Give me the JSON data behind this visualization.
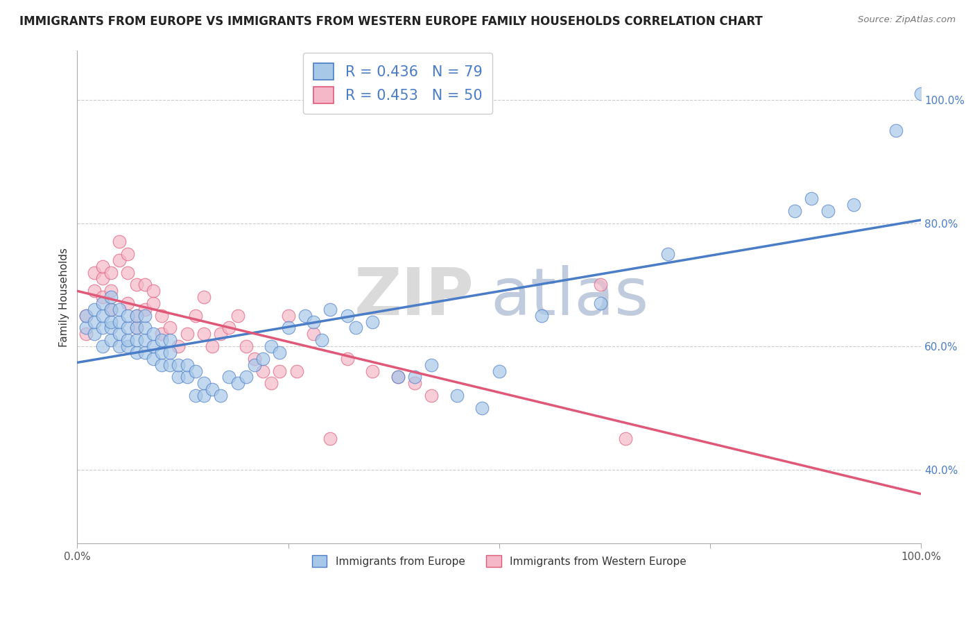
{
  "title": "IMMIGRANTS FROM EUROPE VS IMMIGRANTS FROM WESTERN EUROPE FAMILY HOUSEHOLDS CORRELATION CHART",
  "source": "Source: ZipAtlas.com",
  "ylabel": "Family Households",
  "series1_label": "Immigrants from Europe",
  "series2_label": "Immigrants from Western Europe",
  "series1_R": 0.436,
  "series1_N": 79,
  "series2_R": 0.453,
  "series2_N": 50,
  "series1_color": "#A8C8E8",
  "series2_color": "#F4B8C8",
  "line1_color": "#4A7CC7",
  "line2_color": "#E05878",
  "background_color": "#FFFFFF",
  "tick_color": "#4A7CC7",
  "xlim": [
    0.0,
    1.0
  ],
  "ylim": [
    0.28,
    1.08
  ],
  "yticks": [
    0.4,
    0.6,
    0.8,
    1.0
  ],
  "ytick_labels": [
    "40.0%",
    "60.0%",
    "80.0%",
    "100.0%"
  ],
  "title_fontsize": 12,
  "axis_label_fontsize": 11,
  "tick_fontsize": 11,
  "legend_fontsize": 15,
  "watermark_zip_color": "#D8D8D8",
  "watermark_atlas_color": "#C8D4E8",
  "series1_x": [
    0.01,
    0.01,
    0.02,
    0.02,
    0.02,
    0.03,
    0.03,
    0.03,
    0.03,
    0.04,
    0.04,
    0.04,
    0.04,
    0.04,
    0.05,
    0.05,
    0.05,
    0.05,
    0.06,
    0.06,
    0.06,
    0.06,
    0.07,
    0.07,
    0.07,
    0.07,
    0.08,
    0.08,
    0.08,
    0.08,
    0.09,
    0.09,
    0.09,
    0.1,
    0.1,
    0.1,
    0.11,
    0.11,
    0.11,
    0.12,
    0.12,
    0.13,
    0.13,
    0.14,
    0.14,
    0.15,
    0.15,
    0.16,
    0.17,
    0.18,
    0.19,
    0.2,
    0.21,
    0.22,
    0.23,
    0.24,
    0.25,
    0.27,
    0.28,
    0.29,
    0.3,
    0.32,
    0.33,
    0.35,
    0.38,
    0.4,
    0.42,
    0.45,
    0.48,
    0.5,
    0.55,
    0.62,
    0.7,
    0.85,
    0.87,
    0.89,
    0.92,
    0.97,
    1.0
  ],
  "series1_y": [
    0.63,
    0.65,
    0.62,
    0.64,
    0.66,
    0.6,
    0.63,
    0.65,
    0.67,
    0.61,
    0.63,
    0.64,
    0.66,
    0.68,
    0.6,
    0.62,
    0.64,
    0.66,
    0.6,
    0.61,
    0.63,
    0.65,
    0.59,
    0.61,
    0.63,
    0.65,
    0.59,
    0.61,
    0.63,
    0.65,
    0.58,
    0.6,
    0.62,
    0.57,
    0.59,
    0.61,
    0.57,
    0.59,
    0.61,
    0.55,
    0.57,
    0.55,
    0.57,
    0.52,
    0.56,
    0.52,
    0.54,
    0.53,
    0.52,
    0.55,
    0.54,
    0.55,
    0.57,
    0.58,
    0.6,
    0.59,
    0.63,
    0.65,
    0.64,
    0.61,
    0.66,
    0.65,
    0.63,
    0.64,
    0.55,
    0.55,
    0.57,
    0.52,
    0.5,
    0.56,
    0.65,
    0.67,
    0.75,
    0.82,
    0.84,
    0.82,
    0.83,
    0.95,
    1.01
  ],
  "series2_x": [
    0.01,
    0.01,
    0.02,
    0.02,
    0.03,
    0.03,
    0.03,
    0.04,
    0.04,
    0.04,
    0.05,
    0.05,
    0.06,
    0.06,
    0.06,
    0.07,
    0.07,
    0.07,
    0.08,
    0.08,
    0.09,
    0.09,
    0.1,
    0.1,
    0.11,
    0.12,
    0.13,
    0.14,
    0.15,
    0.15,
    0.16,
    0.17,
    0.18,
    0.19,
    0.2,
    0.21,
    0.22,
    0.23,
    0.24,
    0.25,
    0.26,
    0.28,
    0.3,
    0.32,
    0.35,
    0.38,
    0.4,
    0.42,
    0.62,
    0.65
  ],
  "series2_y": [
    0.62,
    0.65,
    0.69,
    0.72,
    0.68,
    0.71,
    0.73,
    0.66,
    0.69,
    0.72,
    0.74,
    0.77,
    0.72,
    0.75,
    0.67,
    0.63,
    0.65,
    0.7,
    0.66,
    0.7,
    0.67,
    0.69,
    0.62,
    0.65,
    0.63,
    0.6,
    0.62,
    0.65,
    0.62,
    0.68,
    0.6,
    0.62,
    0.63,
    0.65,
    0.6,
    0.58,
    0.56,
    0.54,
    0.56,
    0.65,
    0.56,
    0.62,
    0.45,
    0.58,
    0.56,
    0.55,
    0.54,
    0.52,
    0.7,
    0.45
  ]
}
